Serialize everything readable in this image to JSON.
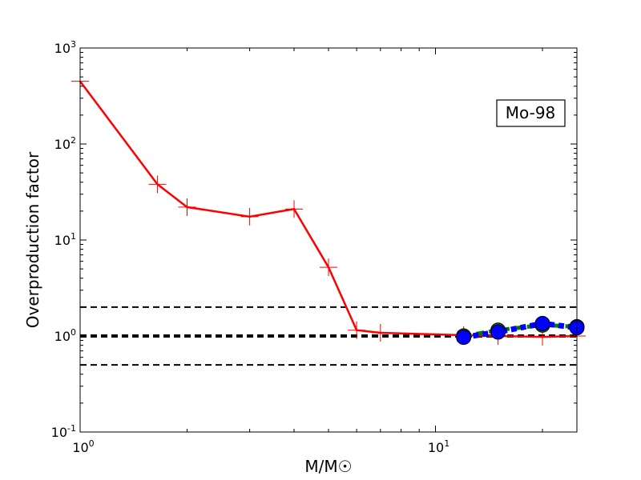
{
  "chart_data": {
    "type": "line",
    "xscale": "log",
    "yscale": "log",
    "xlim": [
      1,
      25
    ],
    "ylim": [
      0.1,
      1000
    ],
    "xlabel": "M/M☉",
    "ylabel": "Overproduction factor",
    "annotation": "Mo-98",
    "x_ticks": [
      {
        "value": 1,
        "base": "10",
        "exp": "0"
      },
      {
        "value": 10,
        "base": "10",
        "exp": "1"
      }
    ],
    "y_ticks": [
      {
        "value": 0.1,
        "base": "10",
        "exp": "-1"
      },
      {
        "value": 1,
        "base": "10",
        "exp": "0"
      },
      {
        "value": 10,
        "base": "10",
        "exp": "1"
      },
      {
        "value": 100,
        "base": "10",
        "exp": "2"
      },
      {
        "value": 1000,
        "base": "10",
        "exp": "3"
      }
    ],
    "reference_lines": [
      {
        "y": 0.5,
        "color": "#000000",
        "style": "dashed"
      },
      {
        "y": 1,
        "color": "#000000",
        "style": "dashed-thick"
      },
      {
        "y": 2,
        "color": "#000000",
        "style": "dashed"
      }
    ],
    "series": [
      {
        "color": "#ff0000",
        "line": "solid",
        "marker": "plus",
        "x": [
          1,
          1.65,
          2,
          3,
          4,
          5,
          6,
          7,
          12,
          15,
          20,
          25
        ],
        "y": [
          450,
          38,
          22,
          17.5,
          21,
          5.2,
          1.15,
          1.08,
          1.02,
          1.0,
          0.98,
          1.0
        ]
      },
      {
        "color": "#008000",
        "line": "dashed",
        "marker": "circle",
        "x": [
          12,
          15,
          20,
          25
        ],
        "y": [
          1.0,
          1.15,
          1.3,
          1.25
        ]
      },
      {
        "color": "#0000ff",
        "line": "dotted",
        "marker": "circle",
        "x": [
          12,
          15,
          20,
          25
        ],
        "y": [
          0.97,
          1.1,
          1.35,
          1.22
        ]
      }
    ]
  }
}
